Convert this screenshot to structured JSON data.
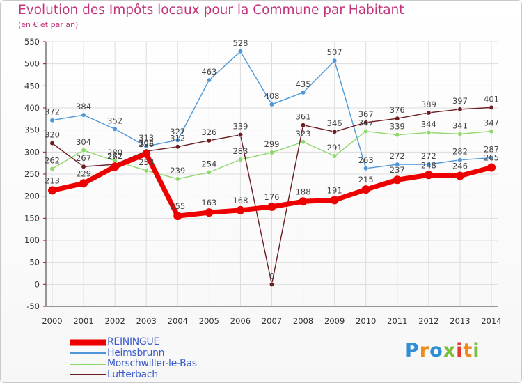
{
  "header": {
    "title": "Evolution des Impôts locaux pour la Commune par Habitant",
    "subtitle": "(en € et par an)"
  },
  "logo": {
    "text": "Proxiti",
    "parts": [
      "P",
      "r",
      "o",
      "x",
      "i",
      "t",
      "i"
    ]
  },
  "colors": {
    "title": "#c2357a",
    "grid": "#dddddd",
    "REININGUE": "#ee0000",
    "Heimsbrunn": "#4e97d8",
    "Morschwiller-le-Bas": "#8fd86a",
    "Lutterbach": "#6b1d22"
  },
  "chart_data": {
    "type": "line",
    "title": "Evolution des Impôts locaux pour la Commune par Habitant",
    "subtitle": "(en € et par an)",
    "xlabel": "",
    "ylabel": "",
    "x": [
      "2000",
      "2001",
      "2002",
      "2003",
      "2004",
      "2005",
      "2006",
      "2007",
      "2008",
      "2009",
      "2010",
      "2011",
      "2012",
      "2013",
      "2014"
    ],
    "ylim": [
      -50,
      550
    ],
    "yticks": [
      -50,
      0,
      50,
      100,
      150,
      200,
      250,
      300,
      350,
      400,
      450,
      500,
      550
    ],
    "grid": true,
    "legend_position": "bottom-left",
    "series": [
      {
        "name": "REININGUE",
        "color": "#ee0000",
        "values": [
          213,
          229,
          267,
          296,
          155,
          163,
          168,
          176,
          188,
          191,
          215,
          237,
          248,
          246,
          265
        ]
      },
      {
        "name": "Heimsbrunn",
        "color": "#4e97d8",
        "values": [
          372,
          384,
          352,
          313,
          327,
          463,
          528,
          408,
          435,
          507,
          263,
          272,
          272,
          282,
          287
        ]
      },
      {
        "name": "Morschwiller-le-Bas",
        "color": "#8fd86a",
        "values": [
          262,
          304,
          280,
          258,
          239,
          254,
          283,
          299,
          323,
          291,
          347,
          339,
          344,
          341,
          347
        ]
      },
      {
        "name": "Lutterbach",
        "color": "#6b1d22",
        "values": [
          320,
          267,
          272,
          302,
          312,
          326,
          339,
          0,
          361,
          346,
          367,
          376,
          389,
          397,
          401
        ]
      }
    ]
  }
}
